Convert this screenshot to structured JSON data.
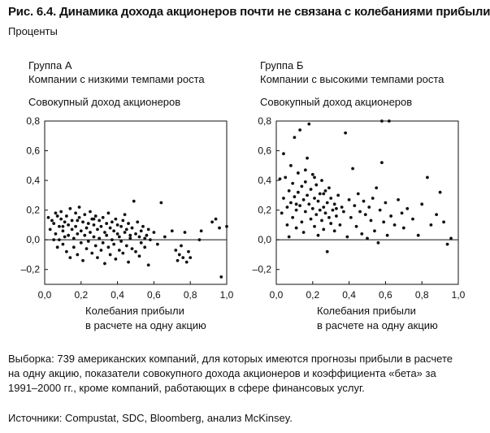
{
  "title": "Рис. 6.4. Динамика дохода акционеров почти не связана с колебаниями прибыли",
  "subtitle": "Проценты",
  "note": "Выборка: 739 американских компаний, для которых имеются прогнозы прибыли в расчете на одну акцию, показатели совокупного дохода акционеров и коэффициента «бета» за 1991–2000 гг., кроме компаний, работающих в сфере финансовых услуг.",
  "source": "Источники: Compustat, SDC, Bloomberg, анализ McKinsey.",
  "colors": {
    "points": "#111111",
    "axis": "#111111"
  },
  "chart_data": [
    {
      "type": "scatter",
      "group": "Группа А",
      "group_desc": "Компании с низкими темпами роста",
      "ylabel": "Совокупный доход акционеров",
      "xlabel_lines": [
        "Колебания прибыли",
        "в расчете на одну акцию"
      ],
      "xlim": [
        0,
        1.0
      ],
      "ylim": [
        -0.3,
        0.8
      ],
      "xticks": [
        0.0,
        0.2,
        0.4,
        0.6,
        0.8,
        1.0
      ],
      "xtick_labels": [
        "0,0",
        "0,2",
        "0,4",
        "0,6",
        "0,8",
        "1,0"
      ],
      "yticks": [
        -0.2,
        0.0,
        0.2,
        0.4,
        0.6,
        0.8
      ],
      "ytick_labels": [
        "–0,2",
        "0,0",
        "0,2",
        "0,4",
        "0,6",
        "0,8"
      ],
      "grid": false,
      "points": [
        [
          0.02,
          0.15
        ],
        [
          0.03,
          0.07
        ],
        [
          0.04,
          0.13
        ],
        [
          0.05,
          0.11
        ],
        [
          0.06,
          0.18
        ],
        [
          0.06,
          0.04
        ],
        [
          0.07,
          0.16
        ],
        [
          0.07,
          -0.05
        ],
        [
          0.08,
          0.09
        ],
        [
          0.08,
          0.0
        ],
        [
          0.09,
          0.14
        ],
        [
          0.09,
          0.19
        ],
        [
          0.1,
          0.06
        ],
        [
          0.1,
          -0.03
        ],
        [
          0.11,
          0.12
        ],
        [
          0.11,
          0.02
        ],
        [
          0.12,
          0.16
        ],
        [
          0.12,
          -0.08
        ],
        [
          0.13,
          0.1
        ],
        [
          0.13,
          0.03
        ],
        [
          0.14,
          0.21
        ],
        [
          0.14,
          -0.12
        ],
        [
          0.15,
          0.07
        ],
        [
          0.15,
          0.13
        ],
        [
          0.16,
          0.01
        ],
        [
          0.16,
          -0.05
        ],
        [
          0.17,
          0.18
        ],
        [
          0.17,
          0.09
        ],
        [
          0.18,
          0.04
        ],
        [
          0.18,
          -0.1
        ],
        [
          0.19,
          0.15
        ],
        [
          0.19,
          0.22
        ],
        [
          0.2,
          -0.02
        ],
        [
          0.2,
          0.06
        ],
        [
          0.21,
          0.12
        ],
        [
          0.21,
          -0.14
        ],
        [
          0.22,
          0.03
        ],
        [
          0.22,
          0.17
        ],
        [
          0.23,
          -0.06
        ],
        [
          0.23,
          0.08
        ],
        [
          0.24,
          0.11
        ],
        [
          0.24,
          -0.01
        ],
        [
          0.25,
          0.19
        ],
        [
          0.25,
          0.05
        ],
        [
          0.26,
          -0.09
        ],
        [
          0.26,
          0.14
        ],
        [
          0.27,
          0.02
        ],
        [
          0.27,
          0.1
        ],
        [
          0.28,
          -0.04
        ],
        [
          0.28,
          0.16
        ],
        [
          0.29,
          0.07
        ],
        [
          0.29,
          -0.12
        ],
        [
          0.3,
          0.13
        ],
        [
          0.3,
          0.01
        ],
        [
          0.31,
          -0.07
        ],
        [
          0.31,
          0.09
        ],
        [
          0.32,
          0.15
        ],
        [
          0.32,
          -0.02
        ],
        [
          0.33,
          0.05
        ],
        [
          0.33,
          -0.16
        ],
        [
          0.34,
          0.11
        ],
        [
          0.34,
          0.03
        ],
        [
          0.35,
          -0.05
        ],
        [
          0.35,
          0.18
        ],
        [
          0.36,
          0.08
        ],
        [
          0.36,
          -0.1
        ],
        [
          0.37,
          0.12
        ],
        [
          0.37,
          0.0
        ],
        [
          0.38,
          0.06
        ],
        [
          0.38,
          -0.03
        ],
        [
          0.39,
          0.14
        ],
        [
          0.39,
          -0.13
        ],
        [
          0.4,
          0.04
        ],
        [
          0.4,
          0.1
        ],
        [
          0.41,
          -0.07
        ],
        [
          0.41,
          0.02
        ],
        [
          0.42,
          0.09
        ],
        [
          0.42,
          -0.01
        ],
        [
          0.43,
          0.13
        ],
        [
          0.43,
          -0.09
        ],
        [
          0.44,
          0.05
        ],
        [
          0.44,
          0.17
        ],
        [
          0.45,
          -0.04
        ],
        [
          0.45,
          0.07
        ],
        [
          0.46,
          0.11
        ],
        [
          0.46,
          -0.15
        ],
        [
          0.47,
          0.03
        ],
        [
          0.47,
          0.01
        ],
        [
          0.48,
          -0.06
        ],
        [
          0.48,
          0.08
        ],
        [
          0.49,
          0.26
        ],
        [
          0.5,
          0.04
        ],
        [
          0.5,
          -0.08
        ],
        [
          0.51,
          0.12
        ],
        [
          0.52,
          0.02
        ],
        [
          0.52,
          -0.11
        ],
        [
          0.53,
          0.06
        ],
        [
          0.53,
          -0.02
        ],
        [
          0.54,
          0.09
        ],
        [
          0.55,
          0.01
        ],
        [
          0.55,
          -0.05
        ],
        [
          0.56,
          0.03
        ],
        [
          0.57,
          0.07
        ],
        [
          0.57,
          -0.17
        ],
        [
          0.58,
          0.0
        ],
        [
          0.6,
          0.05
        ],
        [
          0.62,
          -0.03
        ],
        [
          0.64,
          0.25
        ],
        [
          0.66,
          0.02
        ],
        [
          0.7,
          0.06
        ],
        [
          0.72,
          -0.07
        ],
        [
          0.73,
          -0.14
        ],
        [
          0.74,
          -0.1
        ],
        [
          0.75,
          -0.04
        ],
        [
          0.76,
          -0.12
        ],
        [
          0.77,
          0.05
        ],
        [
          0.78,
          -0.15
        ],
        [
          0.79,
          -0.08
        ],
        [
          0.8,
          -0.12
        ],
        [
          0.85,
          0.0
        ],
        [
          0.86,
          0.06
        ],
        [
          0.92,
          0.12
        ],
        [
          0.94,
          0.14
        ],
        [
          0.96,
          0.08
        ],
        [
          0.97,
          -0.25
        ],
        [
          1.0,
          0.09
        ],
        [
          0.05,
          0.0
        ],
        [
          0.1,
          0.09
        ],
        [
          0.18,
          0.13
        ],
        [
          0.27,
          0.14
        ]
      ]
    },
    {
      "type": "scatter",
      "group": "Группа Б",
      "group_desc": "Компании с высокими темпами роста",
      "ylabel": "Совокупный доход акционеров",
      "xlabel_lines": [
        "Колебания прибыли",
        "в расчете на одну акцию"
      ],
      "xlim": [
        0,
        1.0
      ],
      "ylim": [
        -0.3,
        0.8
      ],
      "xticks": [
        0.0,
        0.2,
        0.4,
        0.6,
        0.8,
        1.0
      ],
      "xtick_labels": [
        "0,0",
        "0,2",
        "0,4",
        "0,6",
        "0,8",
        "1,0"
      ],
      "yticks": [
        -0.2,
        0.0,
        0.2,
        0.4,
        0.6,
        0.8
      ],
      "ytick_labels": [
        "–0,2",
        "0,0",
        "0,2",
        "0,4",
        "0,6",
        "0,8"
      ],
      "grid": false,
      "points": [
        [
          0.02,
          0.41
        ],
        [
          0.03,
          0.18
        ],
        [
          0.04,
          0.28
        ],
        [
          0.04,
          0.58
        ],
        [
          0.05,
          0.42
        ],
        [
          0.06,
          0.22
        ],
        [
          0.06,
          0.1
        ],
        [
          0.07,
          0.33
        ],
        [
          0.07,
          0.02
        ],
        [
          0.08,
          0.5
        ],
        [
          0.08,
          0.25
        ],
        [
          0.09,
          0.38
        ],
        [
          0.09,
          0.15
        ],
        [
          0.1,
          0.69
        ],
        [
          0.1,
          0.29
        ],
        [
          0.11,
          0.2
        ],
        [
          0.11,
          0.08
        ],
        [
          0.12,
          0.45
        ],
        [
          0.12,
          0.32
        ],
        [
          0.13,
          0.74
        ],
        [
          0.13,
          0.23
        ],
        [
          0.14,
          0.36
        ],
        [
          0.14,
          0.12
        ],
        [
          0.15,
          0.27
        ],
        [
          0.15,
          0.05
        ],
        [
          0.16,
          0.39
        ],
        [
          0.16,
          0.19
        ],
        [
          0.17,
          0.3
        ],
        [
          0.17,
          0.55
        ],
        [
          0.18,
          0.78
        ],
        [
          0.18,
          0.24
        ],
        [
          0.19,
          0.14
        ],
        [
          0.19,
          0.34
        ],
        [
          0.2,
          0.21
        ],
        [
          0.2,
          0.44
        ],
        [
          0.21,
          0.09
        ],
        [
          0.21,
          0.28
        ],
        [
          0.22,
          0.17
        ],
        [
          0.22,
          0.37
        ],
        [
          0.23,
          0.26
        ],
        [
          0.23,
          0.03
        ],
        [
          0.24,
          0.31
        ],
        [
          0.24,
          0.2
        ],
        [
          0.25,
          0.13
        ],
        [
          0.25,
          0.4
        ],
        [
          0.26,
          0.22
        ],
        [
          0.26,
          0.07
        ],
        [
          0.27,
          0.33
        ],
        [
          0.27,
          0.18
        ],
        [
          0.28,
          0.25
        ],
        [
          0.28,
          -0.08
        ],
        [
          0.29,
          0.15
        ],
        [
          0.29,
          0.35
        ],
        [
          0.3,
          0.11
        ],
        [
          0.3,
          0.28
        ],
        [
          0.31,
          0.2
        ],
        [
          0.32,
          0.06
        ],
        [
          0.32,
          0.24
        ],
        [
          0.33,
          0.16
        ],
        [
          0.34,
          0.3
        ],
        [
          0.35,
          0.1
        ],
        [
          0.36,
          0.22
        ],
        [
          0.37,
          0.19
        ],
        [
          0.38,
          0.72
        ],
        [
          0.39,
          0.02
        ],
        [
          0.4,
          0.27
        ],
        [
          0.41,
          0.15
        ],
        [
          0.42,
          0.48
        ],
        [
          0.43,
          0.23
        ],
        [
          0.44,
          0.09
        ],
        [
          0.45,
          0.31
        ],
        [
          0.46,
          0.19
        ],
        [
          0.47,
          0.04
        ],
        [
          0.48,
          0.26
        ],
        [
          0.49,
          0.17
        ],
        [
          0.5,
          0.01
        ],
        [
          0.51,
          0.22
        ],
        [
          0.52,
          0.13
        ],
        [
          0.53,
          0.28
        ],
        [
          0.54,
          0.06
        ],
        [
          0.55,
          0.35
        ],
        [
          0.56,
          -0.02
        ],
        [
          0.57,
          0.2
        ],
        [
          0.58,
          0.52
        ],
        [
          0.58,
          0.8
        ],
        [
          0.59,
          0.12
        ],
        [
          0.6,
          0.25
        ],
        [
          0.61,
          0.03
        ],
        [
          0.62,
          0.8
        ],
        [
          0.63,
          0.16
        ],
        [
          0.65,
          0.1
        ],
        [
          0.67,
          0.27
        ],
        [
          0.69,
          0.18
        ],
        [
          0.7,
          0.08
        ],
        [
          0.72,
          0.21
        ],
        [
          0.75,
          0.14
        ],
        [
          0.78,
          0.03
        ],
        [
          0.8,
          0.24
        ],
        [
          0.83,
          0.42
        ],
        [
          0.85,
          0.1
        ],
        [
          0.88,
          0.17
        ],
        [
          0.9,
          0.32
        ],
        [
          0.92,
          0.12
        ],
        [
          0.94,
          -0.03
        ],
        [
          0.96,
          0.01
        ],
        [
          0.11,
          0.24
        ],
        [
          0.16,
          0.47
        ],
        [
          0.21,
          0.42
        ],
        [
          0.26,
          0.31
        ],
        [
          0.33,
          0.21
        ]
      ]
    }
  ]
}
